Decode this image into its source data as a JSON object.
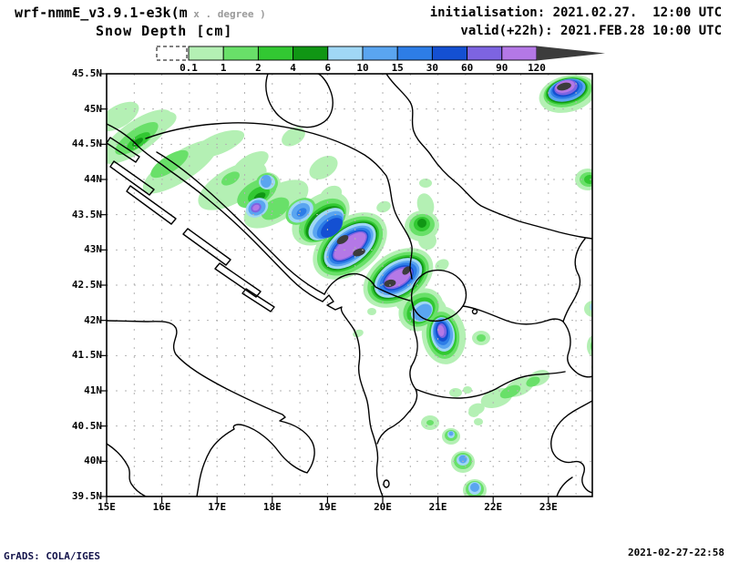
{
  "header": {
    "model_title": "wrf-nmmE_v3.9.1-e3k(m",
    "model_units_gray": " x . degree )",
    "field_title": "Snow Depth [cm]",
    "init_line": "initialisation: 2021.02.27.  12:00 UTC",
    "valid_line": "valid(+22h): 2021.FEB.28 10:00 UTC"
  },
  "colorbar": {
    "tick_labels": [
      "0.1",
      "1",
      "2",
      "4",
      "6",
      "10",
      "15",
      "30",
      "60",
      "90",
      "120"
    ],
    "segment_colors": [
      "#b4f0b4",
      "#69e069",
      "#32c832",
      "#109614",
      "#a0d7f5",
      "#5aa5f0",
      "#2d7de6",
      "#1450d2",
      "#7d64e1",
      "#b478e6"
    ],
    "overflow_color": "#3c3c3c",
    "units": "cm"
  },
  "map": {
    "lat_labels": [
      "45.5N",
      "45N",
      "44.5N",
      "44N",
      "43.5N",
      "43N",
      "42.5N",
      "42N",
      "41.5N",
      "41N",
      "40.5N",
      "40N",
      "39.5N"
    ],
    "lon_labels": [
      "15E",
      "16E",
      "17E",
      "18E",
      "19E",
      "20E",
      "21E",
      "22E",
      "23E"
    ],
    "snow_levels_cm": [
      "0.1",
      "1",
      "2",
      "4",
      "6",
      "10",
      "15",
      "30",
      "60",
      "90",
      "120"
    ],
    "blob_format": "[level,cx,cy,rx,ry,rotation_deg] level 1..10 = colorbar segment, 11 = >120cm overflow",
    "snow_blobs": [
      [
        1,
        150,
        150,
        46,
        17,
        -35
      ],
      [
        1,
        198,
        183,
        48,
        16,
        -33
      ],
      [
        1,
        255,
        204,
        42,
        19,
        -30
      ],
      [
        1,
        303,
        224,
        40,
        19,
        -32
      ],
      [
        1,
        240,
        158,
        30,
        11,
        -22
      ],
      [
        1,
        275,
        180,
        22,
        10,
        -30
      ],
      [
        1,
        322,
        150,
        14,
        9,
        -30
      ],
      [
        1,
        355,
        184,
        17,
        11,
        -32
      ],
      [
        1,
        363,
        214,
        13,
        9,
        -30
      ],
      [
        1,
        130,
        128,
        25,
        12,
        -30
      ],
      [
        1,
        175,
        135,
        20,
        10,
        -25
      ],
      [
        1,
        293,
        202,
        15,
        13,
        0
      ],
      [
        1,
        352,
        240,
        36,
        24,
        -40
      ],
      [
        1,
        384,
        270,
        46,
        30,
        -38
      ],
      [
        1,
        437,
        305,
        42,
        28,
        -33
      ],
      [
        1,
        462,
        340,
        26,
        22,
        -38
      ],
      [
        1,
        487,
        368,
        24,
        32,
        -8
      ],
      [
        1,
        478,
        340,
        12,
        14,
        -20
      ],
      [
        1,
        463,
        248,
        19,
        17,
        -10
      ],
      [
        1,
        469,
        264,
        10,
        10,
        0
      ],
      [
        1,
        467,
        225,
        9,
        13,
        -15
      ],
      [
        1,
        421,
        227,
        8,
        6,
        -20
      ],
      [
        1,
        485,
        291,
        8,
        6,
        -30
      ],
      [
        1,
        467,
        201,
        7,
        5,
        0
      ],
      [
        1,
        393,
        366,
        6,
        4,
        -20
      ],
      [
        1,
        441,
        335,
        6,
        5,
        0
      ],
      [
        1,
        408,
        342,
        5,
        4,
        0
      ],
      [
        1,
        623,
        103,
        32,
        20,
        -14
      ],
      [
        1,
        645,
        197,
        14,
        12,
        0
      ],
      [
        1,
        651,
        339,
        10,
        9,
        0
      ],
      [
        1,
        652,
        380,
        8,
        12,
        0
      ],
      [
        1,
        654,
        403,
        5,
        5,
        0
      ],
      [
        1,
        528,
        371,
        10,
        8,
        0
      ],
      [
        1,
        545,
        437,
        18,
        10,
        -18
      ],
      [
        1,
        570,
        425,
        17,
        9,
        -24
      ],
      [
        1,
        591,
        415,
        13,
        8,
        -24
      ],
      [
        1,
        523,
        449,
        9,
        6,
        -18
      ],
      [
        1,
        500,
        431,
        7,
        5,
        0
      ],
      [
        1,
        513,
        428,
        5,
        4,
        0
      ],
      [
        1,
        520,
        453,
        6,
        5,
        0
      ],
      [
        1,
        525,
        463,
        5,
        4,
        0
      ],
      [
        1,
        472,
        464,
        10,
        8,
        0
      ],
      [
        1,
        495,
        479,
        10,
        9,
        0
      ],
      [
        1,
        508,
        507,
        13,
        12,
        0
      ],
      [
        1,
        521,
        538,
        13,
        12,
        0
      ],
      [
        2,
        150,
        152,
        28,
        10,
        -35
      ],
      [
        2,
        186,
        180,
        24,
        9,
        -33
      ],
      [
        2,
        282,
        212,
        24,
        13,
        -30
      ],
      [
        2,
        302,
        229,
        17,
        10,
        -32
      ],
      [
        2,
        253,
        196,
        11,
        6,
        -30
      ],
      [
        2,
        293,
        201,
        12,
        11,
        0
      ],
      [
        2,
        330,
        232,
        18,
        13,
        -35
      ],
      [
        2,
        354,
        242,
        30,
        19,
        -40
      ],
      [
        2,
        384,
        270,
        41,
        26,
        -38
      ],
      [
        2,
        437,
        305,
        37,
        24,
        -33
      ],
      [
        2,
        462,
        340,
        21,
        17,
        -38
      ],
      [
        2,
        486,
        368,
        18,
        26,
        -8
      ],
      [
        2,
        463,
        247,
        14,
        12,
        -10
      ],
      [
        2,
        623,
        101,
        27,
        16,
        -14
      ],
      [
        2,
        646,
        197,
        10,
        8,
        0
      ],
      [
        2,
        652,
        380,
        4,
        7,
        0
      ],
      [
        2,
        528,
        371,
        5,
        4,
        0
      ],
      [
        2,
        560,
        430,
        12,
        6,
        -24
      ],
      [
        2,
        585,
        419,
        8,
        5,
        -24
      ],
      [
        2,
        495,
        478,
        7,
        6,
        0
      ],
      [
        2,
        508,
        506,
        10,
        9,
        0
      ],
      [
        2,
        521,
        537,
        10,
        9,
        0
      ],
      [
        2,
        472,
        464,
        4,
        3,
        0
      ],
      [
        3,
        152,
        155,
        15,
        6,
        -35
      ],
      [
        3,
        284,
        214,
        13,
        8,
        -30
      ],
      [
        3,
        356,
        244,
        26,
        16,
        -40
      ],
      [
        3,
        384,
        270,
        37,
        22,
        -38
      ],
      [
        3,
        437,
        305,
        33,
        21,
        -33
      ],
      [
        3,
        462,
        341,
        17,
        13,
        -38
      ],
      [
        3,
        486,
        368,
        15,
        22,
        -8
      ],
      [
        3,
        463,
        246,
        9,
        8,
        -10
      ],
      [
        3,
        622,
        100,
        24,
        14,
        -14
      ],
      [
        3,
        647,
        197,
        6,
        5,
        0
      ],
      [
        4,
        285,
        216,
        7,
        4,
        -30
      ],
      [
        4,
        151,
        156,
        7,
        3,
        -35
      ],
      [
        4,
        463,
        245,
        5,
        5,
        -10
      ],
      [
        4,
        356,
        245,
        24,
        14,
        -40
      ],
      [
        4,
        384,
        270,
        35,
        20,
        -38
      ],
      [
        4,
        437,
        305,
        31,
        19,
        -33
      ],
      [
        4,
        622,
        99.5,
        22.5,
        13,
        -14
      ],
      [
        5,
        282,
        228,
        13,
        10,
        -30
      ],
      [
        5,
        293,
        200,
        9,
        8,
        0
      ],
      [
        5,
        330,
        232,
        15,
        11,
        -35
      ],
      [
        5,
        358,
        246,
        23,
        13,
        -40
      ],
      [
        5,
        384,
        270,
        33,
        19,
        -38
      ],
      [
        5,
        437,
        305,
        29,
        18,
        -33
      ],
      [
        5,
        463,
        342,
        13,
        10,
        -38
      ],
      [
        5,
        486,
        367,
        13,
        19,
        -8
      ],
      [
        5,
        495,
        477,
        4,
        4,
        0
      ],
      [
        5,
        508,
        505,
        7,
        6,
        0
      ],
      [
        5,
        521,
        536,
        7,
        7,
        0
      ],
      [
        5,
        652,
        337,
        5,
        5,
        0
      ],
      [
        6,
        292,
        199,
        6,
        7,
        0
      ],
      [
        6,
        282,
        228,
        10,
        8,
        -30
      ],
      [
        6,
        330,
        232,
        11,
        8,
        -35
      ],
      [
        6,
        360,
        247,
        20,
        11,
        -40
      ],
      [
        6,
        384,
        270,
        30,
        16,
        -38
      ],
      [
        6,
        437,
        305,
        26,
        15,
        -33
      ],
      [
        6,
        464,
        343,
        11,
        8,
        -40
      ],
      [
        6,
        486,
        366,
        11,
        17,
        -8
      ],
      [
        6,
        622,
        99,
        21,
        12,
        -14
      ],
      [
        6,
        508,
        504,
        4.5,
        4.5,
        0
      ],
      [
        6,
        521,
        535,
        5,
        5,
        0
      ],
      [
        6,
        495,
        476,
        2.5,
        2.5,
        0
      ],
      [
        6,
        653,
        336,
        3,
        4,
        0
      ],
      [
        7,
        331,
        233,
        6,
        4,
        -35
      ],
      [
        7,
        362,
        249,
        17,
        9,
        -40
      ],
      [
        7,
        384,
        270,
        27,
        14,
        -38
      ],
      [
        7,
        437,
        305,
        23,
        13,
        -33
      ],
      [
        7,
        485,
        365,
        9,
        14,
        -8
      ],
      [
        7,
        622,
        98,
        18,
        10,
        -14
      ],
      [
        8,
        364,
        250,
        14,
        8,
        -40
      ],
      [
        8,
        384,
        270,
        24,
        12,
        -38
      ],
      [
        8,
        437,
        305,
        19,
        11,
        -33
      ],
      [
        8,
        485,
        364,
        7,
        11,
        -8
      ],
      [
        8,
        621,
        97,
        15,
        9,
        -14
      ],
      [
        9,
        281,
        228,
        6,
        5,
        -30
      ],
      [
        9,
        384,
        270,
        22.5,
        10.5,
        -38
      ],
      [
        9,
        437,
        305,
        17.5,
        9.5,
        -32
      ],
      [
        9,
        485,
        363,
        5,
        8,
        -8
      ],
      [
        9,
        621,
        96,
        13,
        8,
        -14
      ],
      [
        10,
        281,
        228,
        4,
        3,
        -30
      ],
      [
        10,
        384,
        270,
        21,
        9,
        -38
      ],
      [
        10,
        437,
        305,
        15,
        8,
        -32
      ],
      [
        10,
        484,
        363,
        3.5,
        6,
        -8
      ],
      [
        10,
        620,
        95,
        11,
        6.5,
        -14
      ],
      [
        11,
        376,
        263,
        7,
        4,
        -32
      ],
      [
        11,
        394,
        277,
        7,
        4,
        -18
      ],
      [
        11,
        428,
        311,
        6.5,
        4,
        -10
      ],
      [
        11,
        446,
        297,
        5.5,
        3.5,
        -45
      ],
      [
        11,
        619,
        95,
        8,
        4,
        -14
      ]
    ]
  },
  "footer": {
    "stamp": "GrADS: COLA/IGES",
    "timestamp": "2021-02-27-22:58"
  }
}
